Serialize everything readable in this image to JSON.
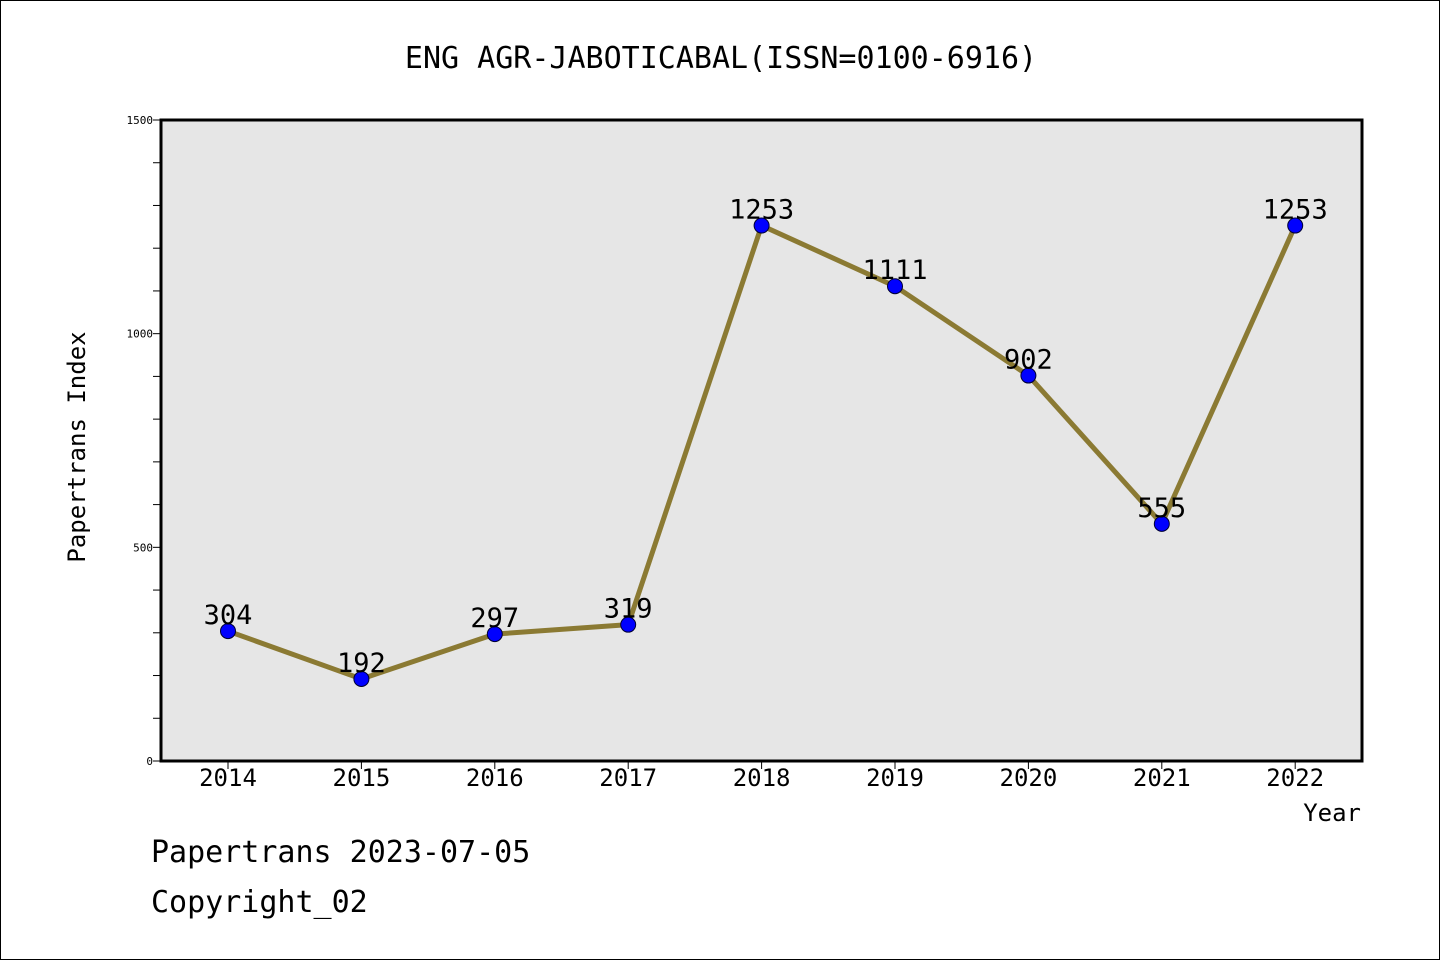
{
  "chart_data": {
    "type": "line",
    "title": "ENG AGR-JABOTICABAL(ISSN=0100-6916)",
    "xlabel": "Year",
    "ylabel": "Papertrans Index",
    "categories": [
      "2014",
      "2015",
      "2016",
      "2017",
      "2018",
      "2019",
      "2020",
      "2021",
      "2022"
    ],
    "values": [
      304,
      192,
      297,
      319,
      1253,
      1111,
      902,
      555,
      1253
    ],
    "data_labels": [
      "304",
      "192",
      "297",
      "319",
      "1253",
      "1111",
      "902",
      "555",
      "1253"
    ],
    "ylim": [
      0,
      1500
    ],
    "yticks": [
      0,
      500,
      1000,
      1500
    ],
    "ytick_labels": [
      "0",
      "500",
      "1000",
      "1500"
    ],
    "y_minor_step": 100,
    "grid": false,
    "legend": "none",
    "colors": {
      "line": "#8B7A33",
      "marker": "#0000FF",
      "plot_background": "#E6E6E6"
    }
  },
  "footer": {
    "line1": "Papertrans 2023-07-05",
    "line2": "Copyright_02"
  }
}
